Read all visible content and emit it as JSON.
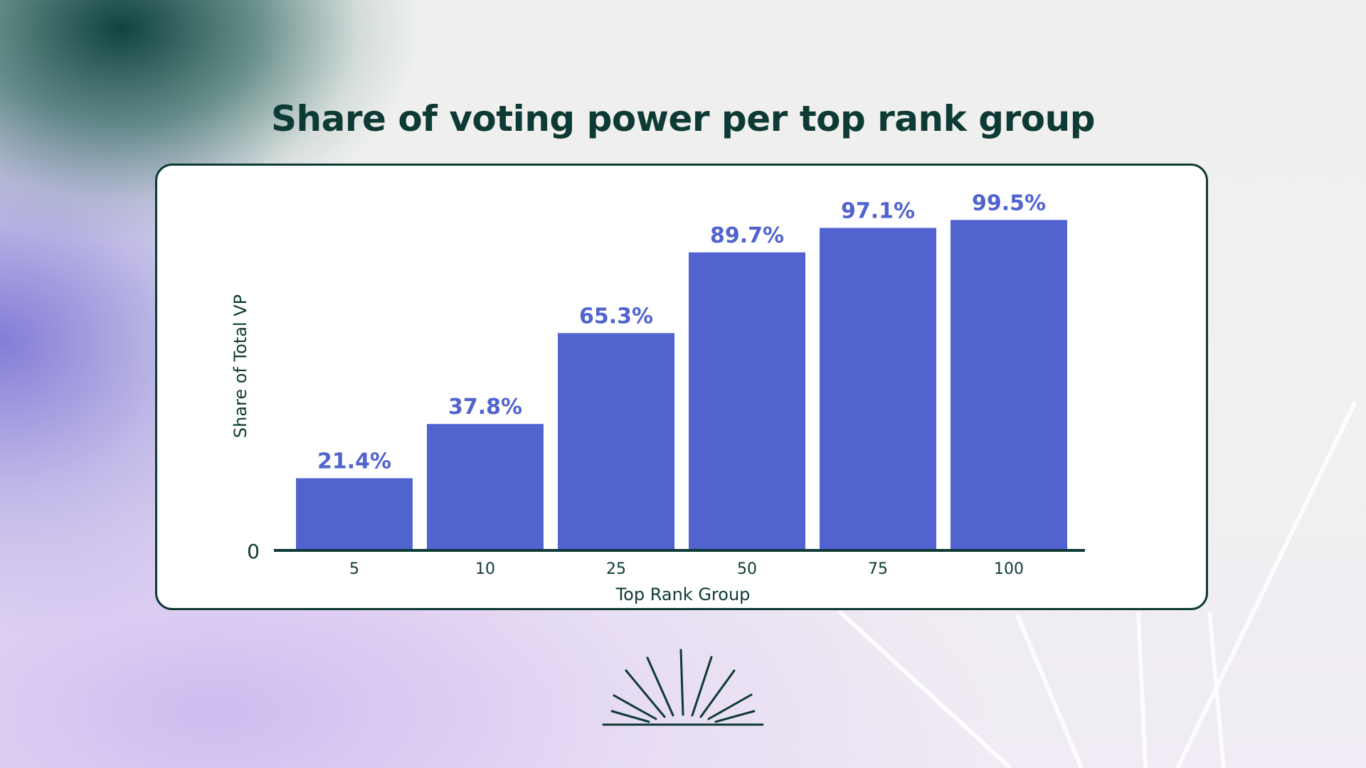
{
  "page": {
    "title": "Share of voting power per top rank group"
  },
  "chart_data": {
    "type": "bar",
    "categories": [
      "5",
      "10",
      "25",
      "50",
      "75",
      "100"
    ],
    "values": [
      21.4,
      37.8,
      65.3,
      89.7,
      97.1,
      99.5
    ],
    "value_labels": [
      "21.4%",
      "37.8%",
      "65.3%",
      "89.7%",
      "97.1%",
      "99.5%"
    ],
    "title": "Share of voting power per top rank group",
    "xlabel": "Top Rank Group",
    "ylabel": "Share of Total VP",
    "yticks": [
      "0"
    ],
    "ylim": [
      0,
      100
    ],
    "grid": false,
    "colors": {
      "bar": "#5163cf",
      "label": "#5163cf",
      "text": "#0e3a35"
    }
  }
}
